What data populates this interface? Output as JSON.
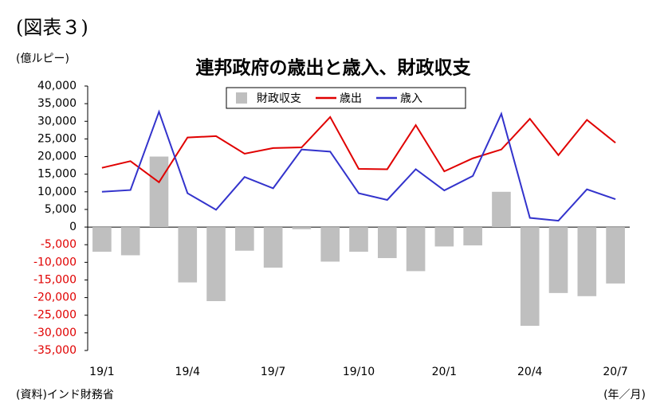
{
  "chart_data": {
    "type": "bar_line",
    "label": "(図表３)",
    "y_axis_label": "(億ルピー)",
    "title": "連邦政府の歳出と歳入、財政収支",
    "source": "(資料)インド財務省",
    "x_axis_label": "(年／月)",
    "categories": [
      "19/1",
      null,
      null,
      "19/4",
      null,
      null,
      "19/7",
      null,
      null,
      "19/10",
      null,
      null,
      "20/1",
      null,
      null,
      "20/4",
      null,
      null,
      "20/7"
    ],
    "series": [
      {
        "name": "財政収支",
        "kind": "bar",
        "color": "#bfbfbf",
        "values": [
          -7000,
          -8000,
          20000,
          -15700,
          -21000,
          -6700,
          -11500,
          -600,
          -9800,
          -7000,
          -8800,
          -12500,
          -5500,
          -5200,
          10000,
          -28000,
          -18700,
          -19600,
          -16000
        ]
      },
      {
        "name": "歳出",
        "kind": "line",
        "color": "#e00000",
        "values": [
          16800,
          18700,
          12700,
          25400,
          25800,
          20800,
          22400,
          22600,
          31200,
          16500,
          16400,
          28900,
          15800,
          19500,
          22000,
          30700,
          20400,
          30400,
          23900
        ]
      },
      {
        "name": "歳入",
        "kind": "line",
        "color": "#3333cc",
        "values": [
          10000,
          10500,
          32700,
          9600,
          4900,
          14200,
          11000,
          22000,
          21400,
          9600,
          7700,
          16400,
          10400,
          14500,
          32100,
          2600,
          1800,
          10700,
          7900
        ]
      }
    ],
    "ylim": [
      -35000,
      40000
    ],
    "yticks": [
      {
        "value": -35000,
        "label": "-35,000"
      },
      {
        "value": -30000,
        "label": "-30,000"
      },
      {
        "value": -25000,
        "label": "-25,000"
      },
      {
        "value": -20000,
        "label": "-20,000"
      },
      {
        "value": -15000,
        "label": "-15,000"
      },
      {
        "value": -10000,
        "label": "-10,000"
      },
      {
        "value": -5000,
        "label": "-5,000"
      },
      0,
      {
        "value": 5000,
        "label": "5,000"
      },
      {
        "value": 10000,
        "label": "10,000"
      },
      {
        "value": 15000,
        "label": "15,000"
      },
      {
        "value": 20000,
        "label": "20,000"
      },
      {
        "value": 25000,
        "label": "25,000"
      },
      {
        "value": 30000,
        "label": "30,000"
      },
      {
        "value": 35000,
        "label": "35,000"
      },
      {
        "value": 40000,
        "label": "40,000"
      }
    ],
    "negative_tick_color": "#e00000"
  }
}
